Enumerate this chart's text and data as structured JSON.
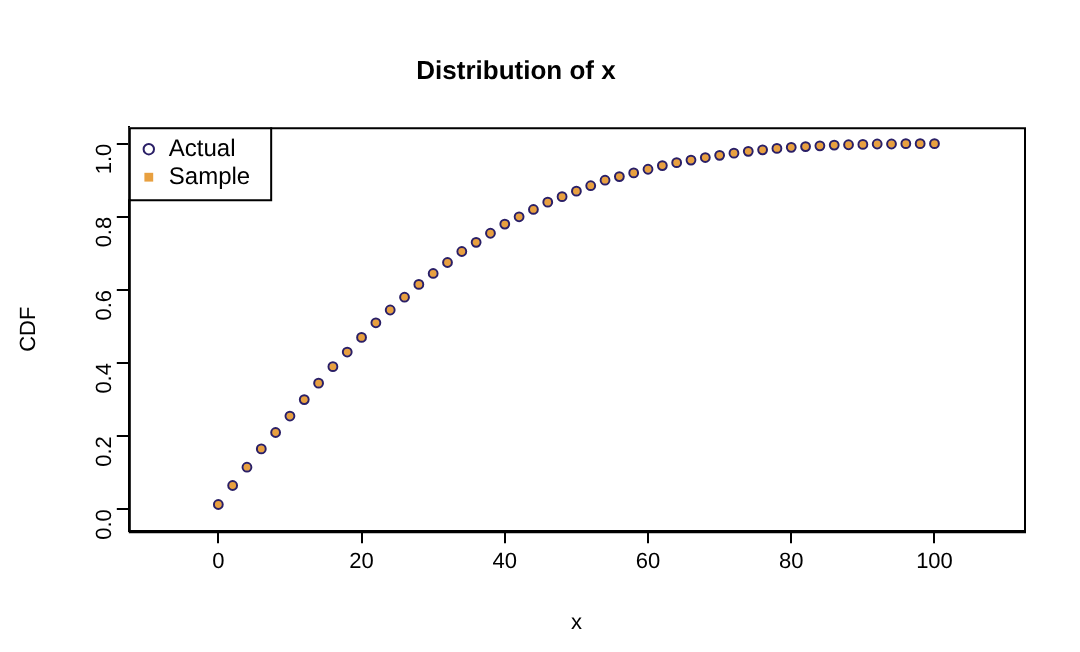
{
  "chart_data": {
    "type": "scatter",
    "title": "Distribution of x",
    "xlabel": "x",
    "ylabel": "CDF",
    "x": [
      0,
      2,
      4,
      6,
      8,
      10,
      12,
      14,
      16,
      18,
      20,
      22,
      24,
      26,
      28,
      30,
      32,
      34,
      36,
      38,
      40,
      42,
      44,
      46,
      48,
      50,
      52,
      54,
      56,
      58,
      60,
      62,
      64,
      66,
      68,
      70,
      72,
      74,
      76,
      78,
      80,
      82,
      84,
      86,
      88,
      90,
      92,
      94,
      96,
      98,
      100
    ],
    "series": [
      {
        "name": "Actual",
        "color": "#2a1f66",
        "marker": "circle",
        "values": [
          0.013,
          0.065,
          0.115,
          0.165,
          0.21,
          0.255,
          0.3,
          0.345,
          0.39,
          0.43,
          0.47,
          0.51,
          0.545,
          0.58,
          0.615,
          0.645,
          0.675,
          0.705,
          0.73,
          0.755,
          0.78,
          0.8,
          0.82,
          0.84,
          0.855,
          0.87,
          0.885,
          0.9,
          0.91,
          0.92,
          0.93,
          0.94,
          0.948,
          0.955,
          0.962,
          0.968,
          0.974,
          0.979,
          0.983,
          0.987,
          0.99,
          0.992,
          0.994,
          0.996,
          0.997,
          0.998,
          0.999,
          0.999,
          1.0,
          1.0,
          1.0
        ]
      },
      {
        "name": "Sample",
        "color": "#e8a040",
        "marker": "square",
        "values": [
          0.013,
          0.065,
          0.115,
          0.165,
          0.21,
          0.255,
          0.3,
          0.345,
          0.39,
          0.43,
          0.47,
          0.51,
          0.545,
          0.58,
          0.615,
          0.645,
          0.675,
          0.705,
          0.73,
          0.755,
          0.78,
          0.8,
          0.82,
          0.84,
          0.855,
          0.87,
          0.885,
          0.9,
          0.91,
          0.92,
          0.93,
          0.94,
          0.948,
          0.955,
          0.962,
          0.968,
          0.974,
          0.979,
          0.983,
          0.987,
          0.99,
          0.992,
          0.994,
          0.996,
          0.997,
          0.998,
          0.999,
          0.999,
          1.0,
          1.0,
          1.0
        ]
      }
    ],
    "xlim": [
      -12.5,
      112.5
    ],
    "xticks": [
      0,
      20,
      40,
      60,
      80,
      100
    ],
    "ylim": [
      -0.06,
      1.045
    ],
    "yticks": [
      {
        "value": 0,
        "label": "0.0"
      },
      0.2,
      0.4,
      0.6,
      0.8,
      {
        "value": 1,
        "label": "1.0"
      }
    ],
    "grid": false,
    "legend": "top left"
  }
}
